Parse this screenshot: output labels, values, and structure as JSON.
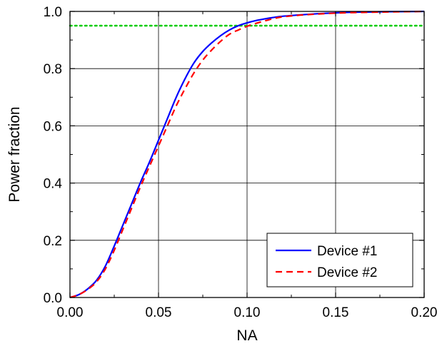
{
  "chart_data": {
    "type": "line",
    "xlabel": "NA",
    "ylabel": "Power fraction",
    "xlim": [
      0,
      0.2
    ],
    "ylim": [
      0,
      1
    ],
    "xticks": [
      0.0,
      0.05,
      0.1,
      0.15,
      0.2
    ],
    "xtick_labels": [
      "0.00",
      "0.05",
      "0.10",
      "0.15",
      "0.20"
    ],
    "yticks": [
      0.0,
      0.2,
      0.4,
      0.6,
      0.8,
      1.0
    ],
    "ytick_labels": [
      "0.0",
      "0.2",
      "0.4",
      "0.6",
      "0.8",
      "1.0"
    ],
    "grid": true,
    "legend_position": "bottom-right",
    "reference_line": {
      "y": 0.95,
      "color": "#00cc00",
      "style": "dotted"
    },
    "series": [
      {
        "name": "Device #1",
        "color": "#0000ff",
        "style": "solid",
        "x": [
          0.0,
          0.005,
          0.01,
          0.015,
          0.02,
          0.025,
          0.03,
          0.035,
          0.04,
          0.045,
          0.05,
          0.055,
          0.06,
          0.065,
          0.07,
          0.075,
          0.08,
          0.085,
          0.09,
          0.095,
          0.1,
          0.105,
          0.11,
          0.115,
          0.12,
          0.13,
          0.14,
          0.15,
          0.16,
          0.18,
          0.2
        ],
        "y": [
          0.0,
          0.01,
          0.03,
          0.06,
          0.11,
          0.18,
          0.255,
          0.33,
          0.405,
          0.475,
          0.55,
          0.625,
          0.7,
          0.765,
          0.82,
          0.86,
          0.89,
          0.915,
          0.935,
          0.95,
          0.96,
          0.968,
          0.974,
          0.979,
          0.983,
          0.988,
          0.992,
          0.995,
          0.997,
          0.999,
          1.0
        ]
      },
      {
        "name": "Device #2",
        "color": "#ff0000",
        "style": "dashed",
        "x": [
          0.0,
          0.005,
          0.01,
          0.015,
          0.02,
          0.025,
          0.03,
          0.035,
          0.04,
          0.045,
          0.05,
          0.055,
          0.06,
          0.065,
          0.07,
          0.075,
          0.08,
          0.085,
          0.09,
          0.095,
          0.1,
          0.105,
          0.11,
          0.115,
          0.12,
          0.13,
          0.14,
          0.15,
          0.16,
          0.18,
          0.2
        ],
        "y": [
          0.0,
          0.01,
          0.028,
          0.055,
          0.1,
          0.165,
          0.24,
          0.315,
          0.39,
          0.46,
          0.53,
          0.6,
          0.67,
          0.73,
          0.785,
          0.83,
          0.865,
          0.895,
          0.92,
          0.935,
          0.948,
          0.958,
          0.967,
          0.975,
          0.981,
          0.987,
          0.991,
          0.994,
          0.996,
          0.998,
          1.0
        ]
      }
    ]
  }
}
